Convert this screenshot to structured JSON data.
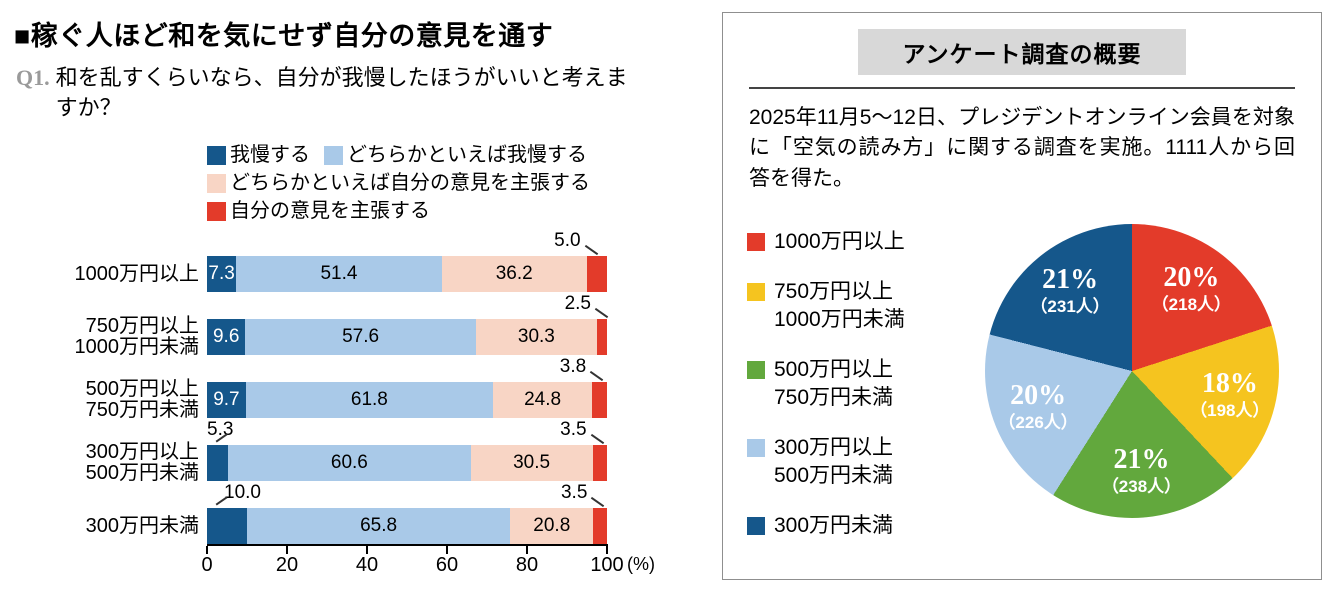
{
  "header": {
    "title": "■稼ぐ人ほど和を気にせず自分の意見を通す",
    "question_label": "Q1.",
    "question_text": "和を乱すくらいなら、自分が我慢したほうがいいと考えますか？"
  },
  "panel": {
    "title": "アンケート調査の概要",
    "description": "2025年11月5〜12日、プレジデントオンライン会員を対象に「空気の読み方」に関する調査を実施。1111人から回答を得た。"
  },
  "chart_data": [
    {
      "type": "bar",
      "variant": "horizontal-stacked",
      "unit": "%",
      "categories": [
        [
          "1000万円以上"
        ],
        [
          "750万円以上",
          "1000万円未満"
        ],
        [
          "500万円以上",
          "750万円未満"
        ],
        [
          "300万円以上",
          "500万円未満"
        ],
        [
          "300万円未満"
        ]
      ],
      "series": [
        {
          "name": "我慢する",
          "color": "#15578b",
          "label_color": "#ffffff",
          "values": [
            7.3,
            9.6,
            9.7,
            5.3,
            10.0
          ],
          "value_labels": [
            "7.3",
            "9.6",
            "9.7",
            "5.3",
            "10.0"
          ],
          "label_placement": [
            "inside",
            "inside",
            "inside",
            "callout-left",
            "callout-left"
          ]
        },
        {
          "name": "どちらかといえば我慢する",
          "color": "#a9c9e8",
          "label_color": "#000000",
          "values": [
            51.4,
            57.6,
            61.8,
            60.6,
            65.8
          ],
          "value_labels": [
            "51.4",
            "57.6",
            "61.8",
            "60.6",
            "65.8"
          ],
          "label_placement": [
            "inside",
            "inside",
            "inside",
            "inside",
            "inside"
          ]
        },
        {
          "name": "どちらかといえば自分の意見を主張する",
          "color": "#f8d5c5",
          "label_color": "#000000",
          "values": [
            36.2,
            30.3,
            24.8,
            30.5,
            20.8
          ],
          "value_labels": [
            "36.2",
            "30.3",
            "24.8",
            "30.5",
            "20.8"
          ],
          "label_placement": [
            "inside",
            "inside",
            "inside",
            "inside",
            "inside"
          ]
        },
        {
          "name": "自分の意見を主張する",
          "color": "#e33b2a",
          "label_color": "#000000",
          "values": [
            5.0,
            2.5,
            3.8,
            3.5,
            3.5
          ],
          "value_labels": [
            "5.0",
            "2.5",
            "3.8",
            "3.5",
            "3.5"
          ],
          "label_placement": [
            "callout-right",
            "callout-right",
            "callout-right",
            "callout-right",
            "callout-right"
          ]
        }
      ],
      "xlim": [
        0,
        100
      ],
      "x_ticks": [
        0,
        20,
        40,
        60,
        80,
        100
      ],
      "x_axis_unit": "(%)"
    },
    {
      "type": "pie",
      "start_angle_deg": 0,
      "direction": "clockwise",
      "slices": [
        {
          "legend_lines": [
            "1000万円以上"
          ],
          "pct": 20,
          "count": 218,
          "pct_label": "20%",
          "count_label": "（218人）",
          "color": "#e33b2a"
        },
        {
          "legend_lines": [
            "750万円以上",
            "1000万円未満"
          ],
          "pct": 18,
          "count": 198,
          "pct_label": "18%",
          "count_label": "（198人）",
          "color": "#f5c41f"
        },
        {
          "legend_lines": [
            "500万円以上",
            "750万円未満"
          ],
          "pct": 21,
          "count": 238,
          "pct_label": "21%",
          "count_label": "（238人）",
          "color": "#62a83d"
        },
        {
          "legend_lines": [
            "300万円以上",
            "500万円未満"
          ],
          "pct": 20,
          "count": 226,
          "pct_label": "20%",
          "count_label": "（226人）",
          "color": "#a9c9e8"
        },
        {
          "legend_lines": [
            "300万円未満"
          ],
          "pct": 21,
          "count": 231,
          "pct_label": "21%",
          "count_label": "（231人）",
          "color": "#15578b"
        }
      ]
    }
  ]
}
